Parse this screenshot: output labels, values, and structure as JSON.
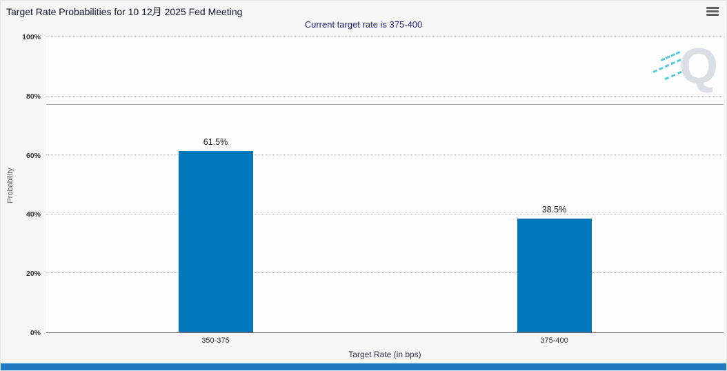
{
  "header": {
    "title": "Target Rate Probabilities for 10 12月 2025 Fed Meeting",
    "subtitle": "Current target rate is 375-400"
  },
  "watermark": {
    "letter": "Q"
  },
  "colors": {
    "bar": "#0079bc",
    "footer_bar": "#1f7ac0",
    "subtitle_text": "#23237d",
    "watermark_dash": "#35c4d7"
  },
  "chart_data": {
    "type": "bar",
    "title": "Target Rate Probabilities for 10 12月 2025 Fed Meeting",
    "subtitle": "Current target rate is 375-400",
    "categories": [
      "350-375",
      "375-400"
    ],
    "values": [
      61.5,
      38.5
    ],
    "value_labels": [
      "61.5%",
      "38.5%"
    ],
    "xlabel": "Target Rate (in bps)",
    "ylabel": "Probability",
    "ylim": [
      0,
      100
    ],
    "yticks": [
      0,
      20,
      40,
      60,
      80,
      100
    ],
    "ytick_labels": [
      "0%",
      "20%",
      "40%",
      "60%",
      "80%",
      "100%"
    ],
    "grid": "horizontal dotted",
    "legend": "none",
    "bar_color": "#0079bc",
    "ref_line_value": 77
  }
}
